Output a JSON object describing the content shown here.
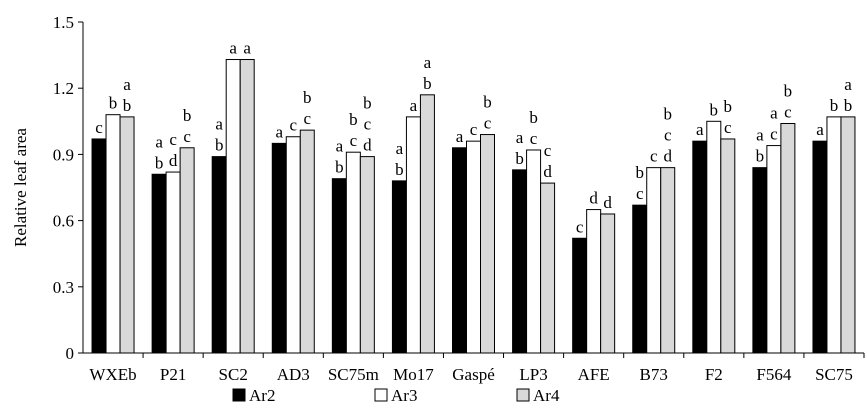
{
  "chart_data": {
    "type": "bar",
    "title": "",
    "xlabel": "",
    "ylabel": "Relative leaf area",
    "ylim": [
      0,
      1.5
    ],
    "yticks": [
      "0",
      "0.3",
      "0.6",
      "0.9",
      "1.2",
      "1.5"
    ],
    "grid": false,
    "legend_position": "bottom",
    "categories": [
      "WXEb",
      "P21",
      "SC2",
      "AD3",
      "SC75m",
      "Mo17",
      "Gaspé",
      "LP3",
      "AFE",
      "B73",
      "F2",
      "F564",
      "SC75"
    ],
    "series": [
      {
        "name": "Ar2",
        "color": "#000000",
        "values": [
          0.97,
          0.81,
          0.89,
          0.95,
          0.79,
          0.78,
          0.93,
          0.83,
          0.52,
          0.67,
          0.96,
          0.84,
          0.96
        ],
        "labels": [
          [
            "c"
          ],
          [
            "b",
            "a"
          ],
          [
            "b",
            "a"
          ],
          [
            "a"
          ],
          [
            "b",
            "a"
          ],
          [
            "b",
            "a"
          ],
          [
            "a"
          ],
          [
            "b",
            "a"
          ],
          [
            "c"
          ],
          [
            "c",
            "b"
          ],
          [
            "a"
          ],
          [
            "b",
            "a"
          ],
          [
            "a"
          ]
        ]
      },
      {
        "name": "Ar3",
        "color": "#ffffff",
        "values": [
          1.08,
          0.82,
          1.33,
          0.98,
          0.91,
          1.07,
          0.96,
          0.92,
          0.65,
          0.84,
          1.05,
          0.94,
          1.07
        ],
        "labels": [
          [
            "b"
          ],
          [
            "d",
            "c"
          ],
          [
            "a"
          ],
          [
            "c"
          ],
          [
            "c",
            "b"
          ],
          [
            "a"
          ],
          [
            "c"
          ],
          [
            "c",
            "b"
          ],
          [
            "d"
          ],
          [
            "c"
          ],
          [
            "b"
          ],
          [
            "c",
            "a"
          ],
          [
            "b"
          ]
        ]
      },
      {
        "name": "Ar4",
        "color": "#d9d9d9",
        "values": [
          1.07,
          0.93,
          1.33,
          1.01,
          0.89,
          1.17,
          0.99,
          0.77,
          0.63,
          0.84,
          0.97,
          1.04,
          1.07
        ],
        "labels": [
          [
            "b",
            "a"
          ],
          [
            "c",
            "b"
          ],
          [
            "a"
          ],
          [
            "c",
            "b"
          ],
          [
            "d",
            "c",
            "b"
          ],
          [
            "b",
            "a"
          ],
          [
            "c",
            "b"
          ],
          [
            "d",
            "c"
          ],
          [
            "d"
          ],
          [
            "d",
            "c",
            "b"
          ],
          [
            "c",
            "b"
          ],
          [
            "c",
            "b"
          ],
          [
            "b",
            "a"
          ]
        ]
      }
    ]
  }
}
